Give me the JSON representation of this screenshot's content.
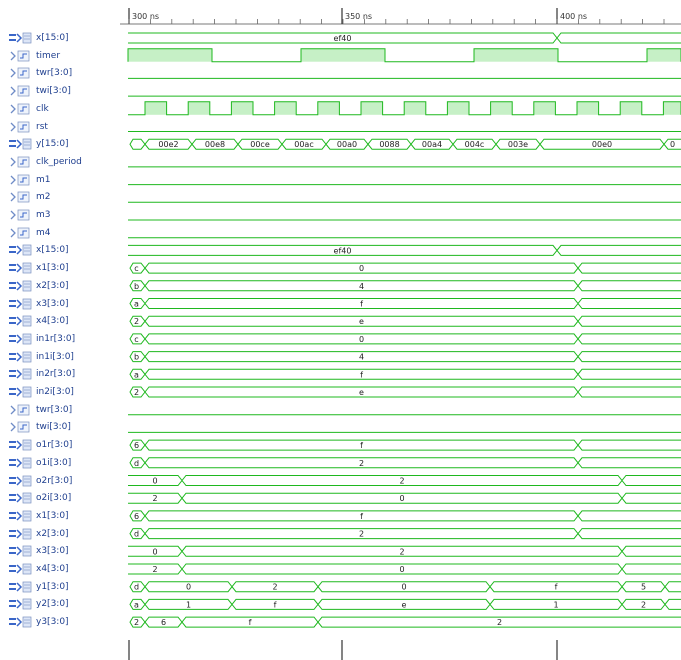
{
  "timeline": {
    "ticks": [
      {
        "label": "300 ns",
        "x": 129
      },
      {
        "label": "350 ns",
        "x": 342
      },
      {
        "label": "400 ns",
        "x": 557
      }
    ]
  },
  "signals": [
    {
      "name": "x[15:0]",
      "kind": "bus",
      "row": 0,
      "segments": [
        {
          "a": 128,
          "b": 557,
          "v": "ef40"
        },
        {
          "a": 557,
          "b": 681,
          "v": ""
        }
      ]
    },
    {
      "name": "timer",
      "kind": "clock_slow",
      "row": 1
    },
    {
      "name": "twr[3:0]",
      "kind": "flat",
      "row": 2
    },
    {
      "name": "twi[3:0]",
      "kind": "flat",
      "row": 3
    },
    {
      "name": "clk",
      "kind": "clock",
      "row": 4
    },
    {
      "name": "rst",
      "kind": "flat",
      "row": 5
    },
    {
      "name": "y[15:0]",
      "kind": "bus",
      "row": 6,
      "segments": [
        {
          "a": 128,
          "b": 145,
          "v": ""
        },
        {
          "a": 145,
          "b": 192,
          "v": "00e2"
        },
        {
          "a": 192,
          "b": 238,
          "v": "00e8"
        },
        {
          "a": 238,
          "b": 282,
          "v": "00ce"
        },
        {
          "a": 282,
          "b": 326,
          "v": "00ac"
        },
        {
          "a": 326,
          "b": 368,
          "v": "00a0"
        },
        {
          "a": 368,
          "b": 411,
          "v": "0088"
        },
        {
          "a": 411,
          "b": 453,
          "v": "00a4"
        },
        {
          "a": 453,
          "b": 496,
          "v": "004c"
        },
        {
          "a": 496,
          "b": 540,
          "v": "003e"
        },
        {
          "a": 540,
          "b": 664,
          "v": "00e0"
        },
        {
          "a": 664,
          "b": 681,
          "v": "0"
        }
      ]
    },
    {
      "name": "clk_period",
      "kind": "flat",
      "row": 7
    },
    {
      "name": "m1",
      "kind": "flat",
      "row": 8
    },
    {
      "name": "m2",
      "kind": "flat",
      "row": 9
    },
    {
      "name": "m3",
      "kind": "flat",
      "row": 10
    },
    {
      "name": "m4",
      "kind": "flat",
      "row": 11
    },
    {
      "name": "x[15:0]",
      "kind": "bus",
      "row": 12,
      "segments": [
        {
          "a": 128,
          "b": 557,
          "v": "ef40"
        },
        {
          "a": 557,
          "b": 681,
          "v": ""
        }
      ]
    },
    {
      "name": "x1[3:0]",
      "kind": "bus",
      "row": 13,
      "segments": [
        {
          "a": 128,
          "b": 145,
          "v": "c"
        },
        {
          "a": 145,
          "b": 578,
          "v": "0"
        },
        {
          "a": 578,
          "b": 681,
          "v": ""
        }
      ]
    },
    {
      "name": "x2[3:0]",
      "kind": "bus",
      "row": 14,
      "segments": [
        {
          "a": 128,
          "b": 145,
          "v": "b"
        },
        {
          "a": 145,
          "b": 578,
          "v": "4"
        },
        {
          "a": 578,
          "b": 681,
          "v": ""
        }
      ]
    },
    {
      "name": "x3[3:0]",
      "kind": "bus",
      "row": 15,
      "segments": [
        {
          "a": 128,
          "b": 145,
          "v": "a"
        },
        {
          "a": 145,
          "b": 578,
          "v": "f"
        },
        {
          "a": 578,
          "b": 681,
          "v": ""
        }
      ]
    },
    {
      "name": "x4[3:0]",
      "kind": "bus",
      "row": 16,
      "segments": [
        {
          "a": 128,
          "b": 145,
          "v": "2"
        },
        {
          "a": 145,
          "b": 578,
          "v": "e"
        },
        {
          "a": 578,
          "b": 681,
          "v": ""
        }
      ]
    },
    {
      "name": "in1r[3:0]",
      "kind": "bus",
      "row": 17,
      "segments": [
        {
          "a": 128,
          "b": 145,
          "v": "c"
        },
        {
          "a": 145,
          "b": 578,
          "v": "0"
        },
        {
          "a": 578,
          "b": 681,
          "v": ""
        }
      ]
    },
    {
      "name": "in1i[3:0]",
      "kind": "bus",
      "row": 18,
      "segments": [
        {
          "a": 128,
          "b": 145,
          "v": "b"
        },
        {
          "a": 145,
          "b": 578,
          "v": "4"
        },
        {
          "a": 578,
          "b": 681,
          "v": ""
        }
      ]
    },
    {
      "name": "in2r[3:0]",
      "kind": "bus",
      "row": 19,
      "segments": [
        {
          "a": 128,
          "b": 145,
          "v": "a"
        },
        {
          "a": 145,
          "b": 578,
          "v": "f"
        },
        {
          "a": 578,
          "b": 681,
          "v": ""
        }
      ]
    },
    {
      "name": "in2i[3:0]",
      "kind": "bus",
      "row": 20,
      "segments": [
        {
          "a": 128,
          "b": 145,
          "v": "2"
        },
        {
          "a": 145,
          "b": 578,
          "v": "e"
        },
        {
          "a": 578,
          "b": 681,
          "v": ""
        }
      ]
    },
    {
      "name": "twr[3:0]",
      "kind": "flat",
      "row": 21
    },
    {
      "name": "twi[3:0]",
      "kind": "flat",
      "row": 22
    },
    {
      "name": "o1r[3:0]",
      "kind": "bus",
      "row": 23,
      "segments": [
        {
          "a": 128,
          "b": 145,
          "v": "6"
        },
        {
          "a": 145,
          "b": 578,
          "v": "f"
        },
        {
          "a": 578,
          "b": 681,
          "v": ""
        }
      ]
    },
    {
      "name": "o1i[3:0]",
      "kind": "bus",
      "row": 24,
      "segments": [
        {
          "a": 128,
          "b": 145,
          "v": "d"
        },
        {
          "a": 145,
          "b": 578,
          "v": "2"
        },
        {
          "a": 578,
          "b": 681,
          "v": ""
        }
      ]
    },
    {
      "name": "o2r[3:0]",
      "kind": "bus",
      "row": 25,
      "segments": [
        {
          "a": 128,
          "b": 182,
          "v": "0"
        },
        {
          "a": 182,
          "b": 622,
          "v": "2"
        },
        {
          "a": 622,
          "b": 681,
          "v": ""
        }
      ]
    },
    {
      "name": "o2i[3:0]",
      "kind": "bus",
      "row": 26,
      "segments": [
        {
          "a": 128,
          "b": 182,
          "v": "2"
        },
        {
          "a": 182,
          "b": 622,
          "v": "0"
        },
        {
          "a": 622,
          "b": 681,
          "v": ""
        }
      ]
    },
    {
      "name": "x1[3:0]",
      "kind": "bus",
      "row": 27,
      "segments": [
        {
          "a": 128,
          "b": 145,
          "v": "6"
        },
        {
          "a": 145,
          "b": 578,
          "v": "f"
        },
        {
          "a": 578,
          "b": 681,
          "v": ""
        }
      ]
    },
    {
      "name": "x2[3:0]",
      "kind": "bus",
      "row": 28,
      "segments": [
        {
          "a": 128,
          "b": 145,
          "v": "d"
        },
        {
          "a": 145,
          "b": 578,
          "v": "2"
        },
        {
          "a": 578,
          "b": 681,
          "v": ""
        }
      ]
    },
    {
      "name": "x3[3:0]",
      "kind": "bus",
      "row": 29,
      "segments": [
        {
          "a": 128,
          "b": 182,
          "v": "0"
        },
        {
          "a": 182,
          "b": 622,
          "v": "2"
        },
        {
          "a": 622,
          "b": 681,
          "v": ""
        }
      ]
    },
    {
      "name": "x4[3:0]",
      "kind": "bus",
      "row": 30,
      "segments": [
        {
          "a": 128,
          "b": 182,
          "v": "2"
        },
        {
          "a": 182,
          "b": 622,
          "v": "0"
        },
        {
          "a": 622,
          "b": 681,
          "v": ""
        }
      ]
    },
    {
      "name": "y1[3:0]",
      "kind": "bus",
      "row": 31,
      "segments": [
        {
          "a": 128,
          "b": 145,
          "v": "d"
        },
        {
          "a": 145,
          "b": 232,
          "v": "0"
        },
        {
          "a": 232,
          "b": 318,
          "v": "2"
        },
        {
          "a": 318,
          "b": 490,
          "v": "0"
        },
        {
          "a": 490,
          "b": 622,
          "v": "f"
        },
        {
          "a": 622,
          "b": 665,
          "v": "5"
        },
        {
          "a": 665,
          "b": 681,
          "v": ""
        }
      ]
    },
    {
      "name": "y2[3:0]",
      "kind": "bus",
      "row": 32,
      "segments": [
        {
          "a": 128,
          "b": 145,
          "v": "a"
        },
        {
          "a": 145,
          "b": 232,
          "v": "1"
        },
        {
          "a": 232,
          "b": 318,
          "v": "f"
        },
        {
          "a": 318,
          "b": 490,
          "v": "e"
        },
        {
          "a": 490,
          "b": 622,
          "v": "1"
        },
        {
          "a": 622,
          "b": 665,
          "v": "2"
        },
        {
          "a": 665,
          "b": 681,
          "v": ""
        }
      ]
    },
    {
      "name": "y3[3:0]",
      "kind": "bus",
      "row": 33,
      "segments": [
        {
          "a": 128,
          "b": 145,
          "v": "2"
        },
        {
          "a": 145,
          "b": 182,
          "v": "6"
        },
        {
          "a": 182,
          "b": 318,
          "v": "f"
        },
        {
          "a": 318,
          "b": 681,
          "v": "2"
        }
      ]
    }
  ],
  "colors": {
    "wave": "#1fb81f",
    "waveFill": "#c6f0c6",
    "label": "#1f3f8f",
    "text": "#222222",
    "grid": "#7a7a7a",
    "iconBlue": "#3a66c8"
  }
}
